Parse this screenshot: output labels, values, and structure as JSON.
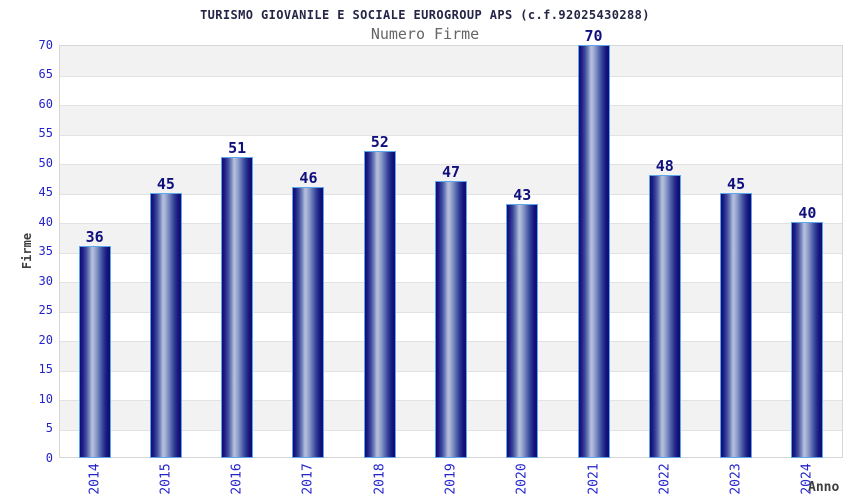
{
  "chart_data": {
    "type": "bar",
    "title": "TURISMO GIOVANILE E SOCIALE EUROGROUP APS (c.f.92025430288)",
    "subtitle": "Numero Firme",
    "xlabel": "Anno",
    "ylabel": "Firme",
    "categories": [
      "2014",
      "2015",
      "2016",
      "2017",
      "2018",
      "2019",
      "2020",
      "2021",
      "2022",
      "2023",
      "2024"
    ],
    "values": [
      36,
      45,
      51,
      46,
      52,
      47,
      43,
      70,
      48,
      45,
      40
    ],
    "ylim": [
      0,
      70
    ],
    "yticks": [
      0,
      5,
      10,
      15,
      20,
      25,
      30,
      35,
      40,
      45,
      50,
      55,
      60,
      65,
      70
    ],
    "grid": "alternating horizontal bands every 5 units",
    "legend_position": "none",
    "bar_value_labels": true
  },
  "colors": {
    "title": "#252547",
    "subtitle": "#666666",
    "tick": "#2424cc",
    "value_label": "#0f0f7e",
    "axis_title": "#3f3f3f",
    "band_gray": "#f2f2f2",
    "band_white": "#ffffff",
    "grid_line": "#e2e2e2",
    "plot_border": "#d7d7d7",
    "bar_border": "#5da6ea",
    "bar_dark": "#0c0c74",
    "bar_light": "#b7c0dd"
  }
}
